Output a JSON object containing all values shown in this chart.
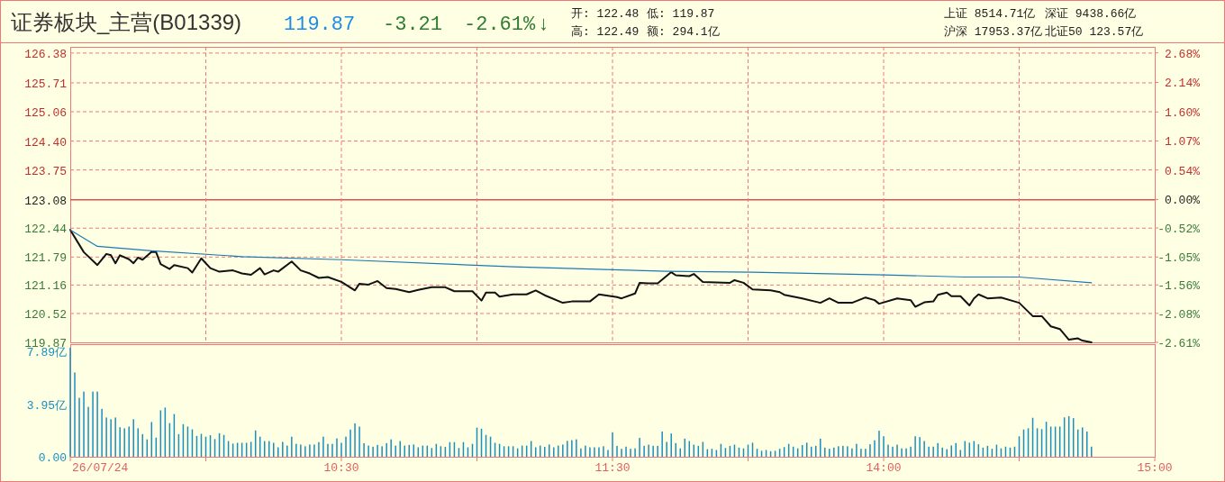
{
  "chart_data": [
    {
      "type": "line",
      "title": "证券板块_主营(B01339)",
      "annotations": [
        "119.87",
        "-3.21",
        "-2.61%",
        "↓",
        "开: 122.48",
        "低: 119.87",
        "高: 122.49",
        "额: 294.1亿",
        "上证 8514.71亿",
        "深证 9438.66亿",
        "沪深 17953.37亿",
        "北证50 123.57亿"
      ],
      "tick_labels": "y",
      "ylim": [
        119.87,
        126.52
      ],
      "yticks": [
        126.38,
        125.71,
        125.06,
        {
          "value": 124.4,
          "label": "124.40"
        },
        123.75,
        123.08,
        122.44,
        121.79,
        121.16,
        120.52,
        119.87
      ],
      "y2lim": [
        -2.61,
        2.79
      ],
      "y2ticks": [
        {
          "value": 2.68,
          "label": "2.68%"
        },
        {
          "value": 2.14,
          "label": "2.14%"
        },
        {
          "value": 1.6,
          "label": "1.60%"
        },
        {
          "value": 1.07,
          "label": "1.07%"
        },
        {
          "value": 0.54,
          "label": "0.54%"
        },
        {
          "value": 0,
          "label": "0.00%"
        },
        {
          "value": -0.52,
          "label": "-0.52%"
        },
        {
          "value": -1.05,
          "label": "-1.05%"
        },
        {
          "value": -1.56,
          "label": "-1.56%"
        },
        {
          "value": -2.08,
          "label": "-2.08%"
        },
        {
          "value": -2.61,
          "label": "-2.61%"
        }
      ],
      "grid": true,
      "ref_lines": [
        {
          "axis": "y",
          "value": 123.08,
          "color": "#e05050"
        }
      ],
      "series": [
        {
          "color": "#111111",
          "values": [
            122.4,
            null,
            null,
            121.9,
            null,
            null,
            121.61,
            null,
            121.86,
            121.83,
            121.65,
            121.83,
            null,
            121.74,
            121.65,
            121.78,
            121.73,
            null,
            121.91,
            121.9,
            121.63,
            null,
            121.52,
            121.61,
            null,
            null,
            121.54,
            121.44,
            null,
            121.76,
            null,
            121.54,
            null,
            121.46,
            null,
            null,
            121.49,
            null,
            121.42,
            null,
            121.39,
            null,
            121.54,
            121.4,
            null,
            121.49,
            121.46,
            null,
            null,
            121.69,
            null,
            121.49,
            null,
            121.42,
            null,
            121.32,
            null,
            121.34,
            null,
            null,
            121.23,
            null,
            null,
            121.04,
            121.19,
            null,
            121.17,
            null,
            121.25,
            null,
            121.09,
            null,
            121.07,
            null,
            null,
            121.0,
            null,
            121.05,
            null,
            null,
            121.11,
            null,
            null,
            121.11,
            null,
            121.02,
            null,
            null,
            null,
            121.02,
            null,
            120.81,
            120.99,
            null,
            120.99,
            120.9,
            null,
            null,
            120.95,
            null,
            null,
            120.95,
            null,
            121.04,
            null,
            120.93,
            null,
            null,
            null,
            120.76,
            null,
            120.79,
            null,
            null,
            null,
            120.79,
            null,
            120.95,
            null,
            null,
            null,
            120.89,
            120.86,
            null,
            null,
            120.97,
            121.21,
            null,
            121.2,
            null,
            121.2,
            null,
            null,
            121.45,
            121.38,
            null,
            null,
            121.36,
            121.41,
            null,
            121.23,
            null,
            null,
            null,
            null,
            null,
            121.21,
            121.27,
            null,
            121.21,
            null,
            121.06,
            null,
            null,
            null,
            121.04,
            null,
            121.0,
            120.94,
            null,
            null,
            null,
            120.86,
            null,
            null,
            null,
            120.76,
            null,
            120.86,
            null,
            120.76,
            null,
            null,
            120.76,
            null,
            null,
            120.88,
            null,
            120.82,
            120.74,
            null,
            null,
            null,
            120.86,
            null,
            null,
            120.82,
            120.67,
            null,
            120.77,
            null,
            120.79,
            120.94,
            null,
            120.99,
            120.91,
            null,
            120.91,
            null,
            120.7,
            120.86,
            120.95,
            null,
            120.86,
            null,
            null,
            120.88,
            null,
            null,
            120.79,
            120.76,
            null,
            null,
            120.46,
            null,
            120.46,
            null,
            120.23,
            null,
            120.17,
            null,
            119.93,
            null,
            119.96,
            119.91,
            null,
            119.87,
            null,
            null,
            null,
            null,
            null,
            null,
            null,
            null,
            null,
            null,
            null,
            null,
            null,
            null
          ]
        },
        {
          "color": "#1a7ab5",
          "values": [
            122.4,
            null,
            null,
            null,
            null,
            null,
            122.03,
            null,
            null,
            null,
            null,
            null,
            null,
            null,
            null,
            null,
            null,
            null,
            121.93,
            null,
            null,
            null,
            null,
            null,
            null,
            null,
            null,
            null,
            null,
            null,
            null,
            null,
            null,
            null,
            null,
            null,
            null,
            null,
            121.8,
            null,
            null,
            null,
            null,
            null,
            null,
            null,
            null,
            null,
            null,
            null,
            null,
            null,
            null,
            null,
            null,
            null,
            null,
            null,
            null,
            null,
            121.73,
            null,
            null,
            null,
            null,
            null,
            null,
            null,
            null,
            null,
            null,
            null,
            null,
            null,
            null,
            null,
            null,
            null,
            null,
            null,
            null,
            null,
            null,
            null,
            null,
            null,
            null,
            null,
            null,
            null,
            null,
            null,
            null,
            null,
            null,
            null,
            null,
            null,
            121.57,
            null,
            null,
            null,
            null,
            null,
            null,
            null,
            null,
            null,
            null,
            null,
            null,
            null,
            null,
            null,
            null,
            null,
            null,
            null,
            null,
            null,
            null,
            null,
            null,
            null,
            null,
            null,
            null,
            null,
            null,
            null,
            null,
            null,
            121.47,
            null,
            null,
            null,
            null,
            null,
            null,
            null,
            null,
            null,
            null,
            null,
            null,
            null,
            null,
            null,
            null,
            null,
            null,
            121.45,
            null,
            null,
            null,
            null,
            null,
            null,
            null,
            null,
            null,
            null,
            null,
            null,
            null,
            null,
            null,
            null,
            null,
            null,
            null,
            null,
            null,
            null,
            null,
            null,
            null,
            null,
            null,
            null,
            121.39,
            null,
            null,
            null,
            null,
            null,
            null,
            null,
            null,
            null,
            null,
            null,
            null,
            null,
            null,
            null,
            null,
            null,
            121.34,
            null,
            null,
            null,
            null,
            null,
            null,
            null,
            null,
            null,
            null,
            null,
            121.34,
            null,
            null,
            null,
            null,
            null,
            null,
            null,
            null,
            null,
            null,
            null,
            null,
            null,
            null,
            null,
            121.21,
            null,
            null,
            null,
            null,
            null,
            null,
            null,
            null,
            null,
            null,
            null,
            null,
            null,
            null
          ]
        }
      ]
    },
    {
      "type": "bar",
      "color": "#1a8fbf",
      "annotations": [
        "26/07/24"
      ],
      "categories": [
        null,
        null,
        null,
        null,
        null,
        null,
        null,
        null,
        null,
        null,
        null,
        null,
        null,
        null,
        null,
        null,
        null,
        null,
        null,
        null,
        null,
        null,
        null,
        null,
        null,
        null,
        null,
        null,
        null,
        null,
        null,
        null,
        null,
        null,
        null,
        null,
        null,
        null,
        null,
        null,
        null,
        null,
        null,
        null,
        null,
        null,
        null,
        null,
        null,
        null,
        null,
        null,
        null,
        null,
        null,
        null,
        null,
        null,
        null,
        null,
        "10:30",
        null,
        null,
        null,
        null,
        null,
        null,
        null,
        null,
        null,
        null,
        null,
        null,
        null,
        null,
        null,
        null,
        null,
        null,
        null,
        null,
        null,
        null,
        null,
        null,
        null,
        null,
        null,
        null,
        null,
        null,
        null,
        null,
        null,
        null,
        null,
        null,
        null,
        null,
        null,
        null,
        null,
        null,
        null,
        null,
        null,
        null,
        null,
        null,
        null,
        null,
        null,
        null,
        null,
        null,
        null,
        null,
        null,
        null,
        null,
        "11:30",
        null,
        null,
        null,
        null,
        null,
        null,
        null,
        null,
        null,
        null,
        null,
        null,
        null,
        null,
        null,
        null,
        null,
        null,
        null,
        null,
        null,
        null,
        null,
        null,
        null,
        null,
        null,
        null,
        null,
        null,
        null,
        null,
        null,
        null,
        null,
        null,
        null,
        null,
        null,
        null,
        null,
        null,
        null,
        null,
        null,
        null,
        null,
        null,
        null,
        null,
        null,
        null,
        null,
        null,
        null,
        null,
        null,
        null,
        null,
        "14:00",
        null,
        null,
        null,
        null,
        null,
        null,
        null,
        null,
        null,
        null,
        null,
        null,
        null,
        null,
        null,
        null,
        null,
        null,
        null,
        null,
        null,
        null,
        null,
        null,
        null,
        null,
        null,
        null,
        null,
        null,
        null,
        null,
        null,
        null,
        null,
        null,
        null,
        null,
        null,
        null,
        null,
        null,
        null,
        null,
        null,
        null,
        null,
        null,
        null,
        null,
        null,
        null,
        null,
        null,
        null,
        null,
        null,
        null,
        null,
        "15:00"
      ],
      "ylim": [
        0,
        8.46
      ],
      "yticks": [
        {
          "value": 0,
          "label": "0.00"
        },
        {
          "value": 3.95,
          "label": "3.95亿"
        },
        {
          "value": 7.89,
          "label": "7.89亿"
        }
      ],
      "values": [
        8.2,
        6.33,
        4.43,
        4.9,
        3.75,
        4.9,
        4.9,
        3.6,
        2.95,
        2.82,
        2.95,
        2.22,
        2.14,
        2.27,
        2.82,
        2.14,
        1.7,
        1.31,
        2.61,
        1.44,
        3.49,
        3.7,
        2.53,
        3.21,
        1.7,
        2.45,
        2.27,
        2.06,
        1.57,
        1.72,
        1.51,
        1.62,
        1.33,
        1.77,
        1.64,
        1.18,
        0.99,
        1.05,
        1.05,
        1.05,
        1.12,
        1.98,
        1.51,
        1.18,
        1.18,
        1.05,
        0.71,
        1.12,
        0.84,
        1.51,
        0.97,
        0.92,
        0.79,
        0.92,
        0.92,
        1.1,
        1.51,
        0.97,
        0.97,
        1.38,
        1.05,
        1.51,
        2.04,
        2.51,
        2.27,
        1.02,
        0.84,
        0.76,
        0.89,
        0.79,
        1.02,
        1.31,
        0.84,
        1.18,
        0.84,
        0.89,
        0.92,
        0.71,
        0.84,
        0.84,
        0.66,
        0.97,
        0.79,
        0.74,
        1.1,
        1.1,
        0.66,
        1.1,
        0.71,
        0.97,
        2.19,
        2.11,
        1.64,
        1.51,
        1.05,
        0.97,
        0.79,
        0.79,
        0.79,
        0.63,
        0.84,
        0.84,
        1.18,
        0.71,
        0.84,
        0.74,
        0.92,
        0.71,
        0.84,
        0.92,
        1.2,
        1.25,
        1.31,
        0.63,
        0.84,
        0.71,
        0.71,
        0.71,
        0.79,
        0.51,
        1.84,
        0.82,
        0.6,
        0.76,
        0.6,
        0.63,
        1.42,
        0.82,
        0.91,
        0.82,
        0.82,
        1.9,
        1.12,
        1.75,
        1.03,
        0.63,
        1.36,
        1.18,
        0.91,
        0.82,
        1.12,
        0.57,
        0.6,
        0.51,
        0.97,
        0.66,
        0.82,
        0.91,
        0.69,
        0.63,
        0.91,
        1.06,
        0.6,
        0.45,
        0.51,
        0.42,
        0.45,
        0.6,
        0.73,
        0.97,
        0.76,
        0.63,
        0.88,
        1.06,
        0.76,
        0.82,
        1.36,
        0.69,
        0.6,
        0.69,
        0.79,
        0.82,
        0.79,
        0.63,
        0.97,
        0.6,
        0.6,
        0.94,
        1.24,
        1.96,
        1.54,
        0.91,
        0.76,
        0.91,
        0.63,
        0.63,
        0.76,
        1.54,
        1.48,
        1.18,
        0.76,
        0.76,
        1.03,
        0.69,
        0.57,
        0.85,
        1.03,
        0.51,
        1.18,
        1.06,
        1.18,
        0.94,
        0.69,
        0.82,
        0.6,
        0.91,
        0.63,
        0.76,
        0.69,
        0.76,
        1.54,
        2.05,
        2.14,
        2.93,
        2.14,
        2.08,
        2.63,
        2.27,
        2.27,
        2.27,
        2.96,
        3.05,
        2.9,
        2.05,
        2.2,
        1.9,
        0.76,
        null,
        null,
        null,
        null,
        null,
        null,
        null,
        null,
        null,
        null,
        null,
        null,
        null,
        null
      ]
    }
  ]
}
